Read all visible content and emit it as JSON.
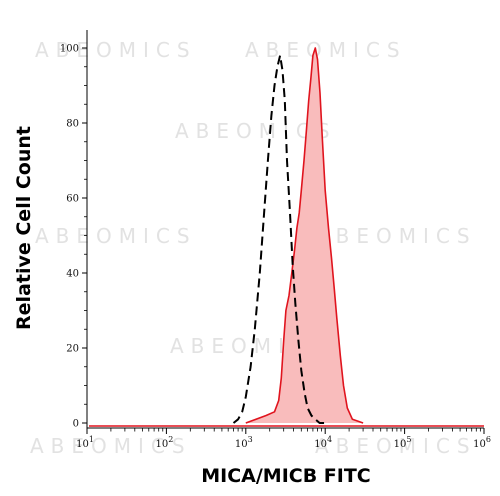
{
  "watermark": "ABEOMICS",
  "chart_data": {
    "type": "area",
    "title": "",
    "xlabel": "MICA/MICB FITC",
    "ylabel": "Relative Cell Count",
    "x_scale": "log",
    "xlim": [
      10,
      1000000
    ],
    "ylim": [
      0,
      105
    ],
    "x_ticks": [
      10,
      100,
      1000,
      10000,
      100000,
      1000000
    ],
    "x_tick_labels": [
      {
        "base": "10",
        "exp": "1"
      },
      {
        "base": "10",
        "exp": "2"
      },
      {
        "base": "10",
        "exp": "3"
      },
      {
        "base": "10",
        "exp": "4"
      },
      {
        "base": "10",
        "exp": "5"
      },
      {
        "base": "10",
        "exp": "6"
      }
    ],
    "y_ticks": [
      0,
      20,
      40,
      60,
      80,
      100
    ],
    "y_tick_labels": [
      "0",
      "20",
      "40",
      "60",
      "80",
      "100"
    ],
    "series": [
      {
        "style": "filled-red",
        "color": "#e0141e",
        "fill": "#f9bcbc",
        "x": [
          1000,
          1800,
          2300,
          2600,
          2800,
          3000,
          3200,
          3500,
          3800,
          4100,
          4400,
          4700,
          5000,
          5400,
          5800,
          6200,
          6600,
          7000,
          7500,
          8000,
          8600,
          9200,
          10000,
          11000,
          12000,
          13000,
          14000,
          15500,
          17000,
          19000,
          22000,
          30000
        ],
        "y": [
          0,
          2,
          3,
          6,
          12,
          22,
          30,
          34,
          40,
          46,
          52,
          56,
          62,
          70,
          78,
          86,
          92,
          98,
          100,
          97,
          88,
          76,
          62,
          52,
          44,
          36,
          28,
          18,
          10,
          4,
          1,
          0
        ]
      },
      {
        "style": "dashed-black",
        "color": "#000000",
        "x": [
          700,
          800,
          900,
          1000,
          1150,
          1300,
          1500,
          1700,
          1900,
          2100,
          2300,
          2500,
          2700,
          2900,
          3100,
          3300,
          3600,
          3900,
          4200,
          4600,
          5000,
          5500,
          6000,
          6700,
          7500,
          8500,
          10000
        ],
        "y": [
          0,
          1,
          3,
          7,
          15,
          25,
          40,
          56,
          70,
          82,
          90,
          95,
          98,
          94,
          86,
          70,
          56,
          42,
          32,
          22,
          14,
          8,
          4,
          2,
          1,
          0,
          0
        ]
      }
    ]
  }
}
